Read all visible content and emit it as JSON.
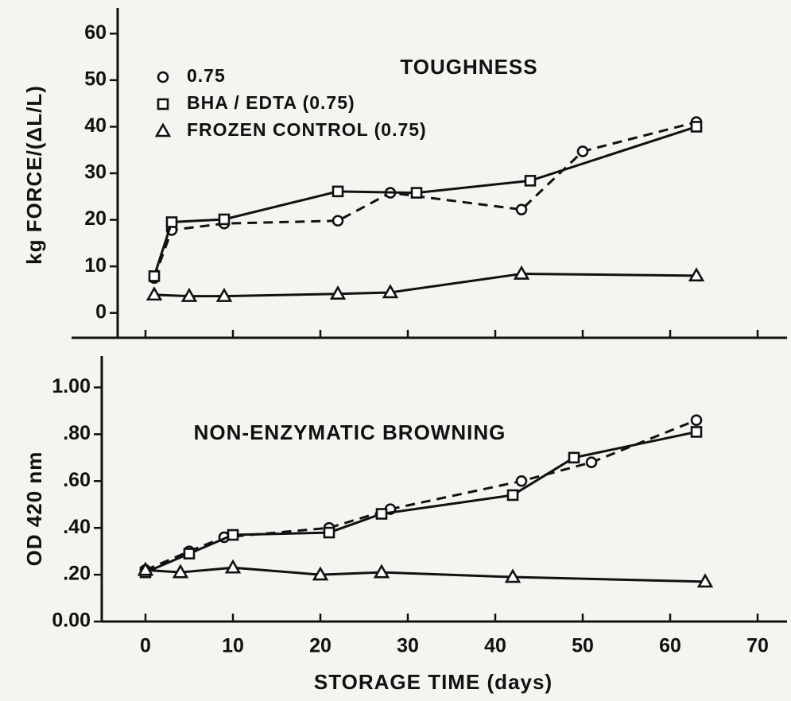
{
  "chart_data": [
    {
      "type": "line",
      "title": "TOUGHNESS",
      "ylabel": "kg FORCE/(ΔL/L)",
      "xlim": [
        -5,
        73
      ],
      "xticks": [
        0,
        10,
        20,
        30,
        40,
        50,
        60,
        70
      ],
      "ylim": [
        -5,
        65
      ],
      "yticks": [
        0,
        10,
        20,
        30,
        40,
        50,
        60
      ],
      "legend": "upper left",
      "series": [
        {
          "name": "0.75",
          "color": "#111111",
          "marker": "circle",
          "dash": true,
          "x": [
            1,
            3,
            9,
            22,
            28,
            43,
            50,
            63
          ],
          "values": [
            7.5,
            17.8,
            19.2,
            19.8,
            25.8,
            22.2,
            34.7,
            41
          ]
        },
        {
          "name": "BHA / EDTA (0.75)",
          "color": "#111111",
          "marker": "square",
          "dash": false,
          "x": [
            1,
            3,
            9,
            22,
            31,
            44,
            63
          ],
          "values": [
            7.9,
            19.5,
            20.1,
            26.1,
            25.8,
            28.4,
            40
          ]
        },
        {
          "name": "FROZEN CONTROL (0.75)",
          "color": "#111111",
          "marker": "triangle",
          "dash": false,
          "x": [
            1,
            5,
            9,
            22,
            28,
            43,
            63
          ],
          "values": [
            3.9,
            3.6,
            3.6,
            4.1,
            4.4,
            8.4,
            8
          ]
        }
      ]
    },
    {
      "type": "line",
      "title": "NON-ENZYMATIC BROWNING",
      "ylabel": "OD 420 nm",
      "xlabel": "STORAGE TIME (days)",
      "xlim": [
        -5,
        73
      ],
      "xticks": [
        0,
        10,
        20,
        30,
        40,
        50,
        60,
        70
      ],
      "ylim": [
        0,
        1.1
      ],
      "yticks": [
        {
          "value": 0,
          "label": "0.00"
        },
        {
          "value": 0.2,
          "label": ".20"
        },
        {
          "value": 0.4,
          "label": ".40"
        },
        {
          "value": 0.6,
          "label": ".60"
        },
        {
          "value": 0.8,
          "label": ".80"
        },
        {
          "value": 1,
          "label": "1.00"
        }
      ],
      "series": [
        {
          "color": "#111111",
          "marker": "circle",
          "dash": true,
          "x": [
            0,
            5,
            9,
            21,
            28,
            43,
            51,
            63
          ],
          "values": [
            0.22,
            0.3,
            0.36,
            0.4,
            0.48,
            0.6,
            0.68,
            0.86
          ]
        },
        {
          "color": "#111111",
          "marker": "square",
          "dash": false,
          "x": [
            0,
            5,
            10,
            21,
            27,
            42,
            49,
            63
          ],
          "values": [
            0.21,
            0.29,
            0.37,
            0.38,
            0.46,
            0.54,
            0.7,
            0.81
          ]
        },
        {
          "color": "#111111",
          "marker": "triangle",
          "dash": false,
          "x": [
            0,
            4,
            10,
            20,
            27,
            42,
            64
          ],
          "values": [
            0.22,
            0.21,
            0.23,
            0.2,
            0.21,
            0.19,
            0.17
          ]
        }
      ]
    }
  ]
}
